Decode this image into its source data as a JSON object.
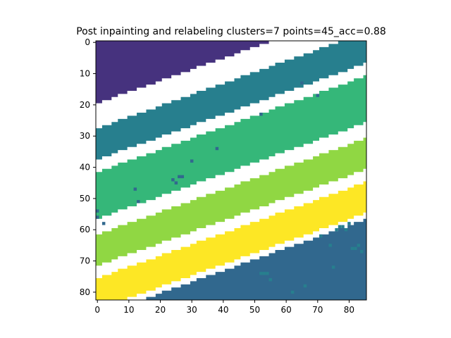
{
  "chart_data": {
    "type": "heatmap",
    "title": "Post inpainting and relabeling clusters=7 points=45_acc=0.88",
    "xlabel": "",
    "ylabel": "",
    "xlim": [
      -0.5,
      85.5
    ],
    "ylim": [
      82.5,
      -0.5
    ],
    "x_ticks": [
      0,
      10,
      20,
      30,
      40,
      50,
      60,
      70,
      80
    ],
    "y_ticks": [
      0,
      10,
      20,
      30,
      40,
      50,
      60,
      70,
      80
    ],
    "x_tick_labels": [
      "0",
      "10",
      "20",
      "30",
      "40",
      "50",
      "60",
      "70",
      "80"
    ],
    "y_tick_labels": [
      "0",
      "10",
      "20",
      "30",
      "40",
      "50",
      "60",
      "70",
      "80"
    ],
    "grid": false,
    "colormap": "viridis",
    "unlabeled_color": "#ffffff",
    "grid_size": {
      "rows": 83,
      "cols": 86
    },
    "bands": [
      {
        "cluster": 1,
        "color": "#46327e",
        "row_at_col0_start": 0,
        "row_at_col0_end": 20,
        "slope_rows_per_col": -0.36
      },
      {
        "cluster": 2,
        "color": "#277f8e",
        "row_at_col0_start": 28,
        "row_at_col0_end": 38,
        "slope_rows_per_col": -0.36
      },
      {
        "cluster": 3,
        "color": "#35b779",
        "row_at_col0_start": 42,
        "row_at_col0_end": 57,
        "slope_rows_per_col": -0.36
      },
      {
        "cluster": 4,
        "color": "#90d743",
        "row_at_col0_start": 62,
        "row_at_col0_end": 72,
        "slope_rows_per_col": -0.36
      },
      {
        "cluster": 5,
        "color": "#fde725",
        "row_at_col0_start": 76,
        "row_at_col0_end": 86,
        "slope_rows_per_col": -0.36
      },
      {
        "cluster": 6,
        "color": "#31688e",
        "row_at_col0_start": 88,
        "row_at_col0_end": 130,
        "slope_rows_per_col": -0.36
      }
    ],
    "outlier_points": [
      {
        "x": 0,
        "y": 54,
        "color": "#31688e"
      },
      {
        "x": 0,
        "y": 56,
        "color": "#31688e"
      },
      {
        "x": 2,
        "y": 58,
        "color": "#31688e"
      },
      {
        "x": 12,
        "y": 47,
        "color": "#31688e"
      },
      {
        "x": 13,
        "y": 51,
        "color": "#31688e"
      },
      {
        "x": 24,
        "y": 44,
        "color": "#31688e"
      },
      {
        "x": 25,
        "y": 45,
        "color": "#31688e"
      },
      {
        "x": 26,
        "y": 43,
        "color": "#31688e"
      },
      {
        "x": 27,
        "y": 43,
        "color": "#31688e"
      },
      {
        "x": 30,
        "y": 38,
        "color": "#31688e"
      },
      {
        "x": 38,
        "y": 34,
        "color": "#31688e"
      },
      {
        "x": 52,
        "y": 23,
        "color": "#31688e"
      },
      {
        "x": 65,
        "y": 13,
        "color": "#31688e"
      },
      {
        "x": 70,
        "y": 17,
        "color": "#31688e"
      },
      {
        "x": 71,
        "y": 62,
        "color": "#277f8e"
      },
      {
        "x": 74,
        "y": 65,
        "color": "#277f8e"
      },
      {
        "x": 75,
        "y": 72,
        "color": "#277f8e"
      },
      {
        "x": 76,
        "y": 60,
        "color": "#277f8e"
      },
      {
        "x": 77,
        "y": 59,
        "color": "#277f8e"
      },
      {
        "x": 78,
        "y": 59,
        "color": "#277f8e"
      },
      {
        "x": 79,
        "y": 60,
        "color": "#277f8e"
      },
      {
        "x": 80,
        "y": 58,
        "color": "#277f8e"
      },
      {
        "x": 81,
        "y": 66,
        "color": "#277f8e"
      },
      {
        "x": 82,
        "y": 66,
        "color": "#277f8e"
      },
      {
        "x": 83,
        "y": 65,
        "color": "#277f8e"
      },
      {
        "x": 84,
        "y": 67,
        "color": "#277f8e"
      },
      {
        "x": 52,
        "y": 74,
        "color": "#277f8e"
      },
      {
        "x": 53,
        "y": 74,
        "color": "#277f8e"
      },
      {
        "x": 54,
        "y": 74,
        "color": "#277f8e"
      },
      {
        "x": 55,
        "y": 76,
        "color": "#277f8e"
      },
      {
        "x": 66,
        "y": 78,
        "color": "#277f8e"
      },
      {
        "x": 62,
        "y": 80,
        "color": "#277f8e"
      }
    ]
  }
}
